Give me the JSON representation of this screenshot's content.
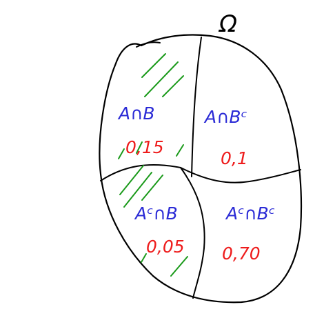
{
  "sample_space": {
    "label": "Ω"
  },
  "regions": [
    {
      "id": "a-and-b",
      "label": "A∩B",
      "probability": "0,15",
      "shaded": true
    },
    {
      "id": "a-and-bc",
      "label": "A∩Bᶜ",
      "probability": "0,1",
      "shaded": false
    },
    {
      "id": "ac-and-b",
      "label": "Aᶜ∩B",
      "probability": "0,05",
      "shaded": true
    },
    {
      "id": "ac-and-bc",
      "label": "Aᶜ∩Bᶜ",
      "probability": "0,70",
      "shaded": false
    }
  ],
  "colors": {
    "outline": "#000000",
    "set_label": "#2b2bd6",
    "probability": "#ee1c1c",
    "hatching": "#1a9a1a",
    "background": "#ffffff"
  }
}
